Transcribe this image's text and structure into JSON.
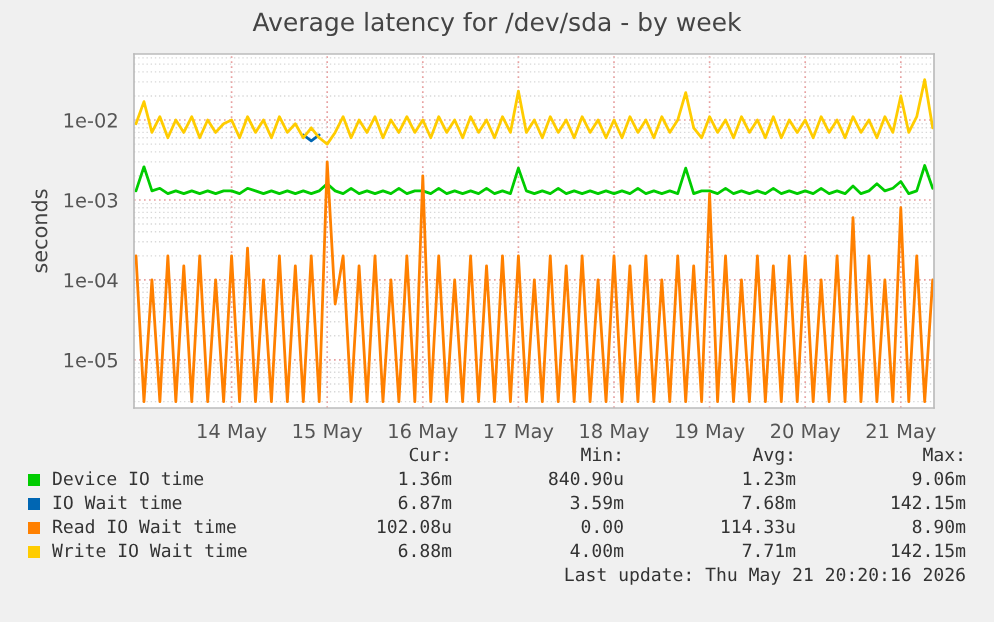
{
  "chart_data": {
    "type": "line",
    "title": "Average latency for /dev/sda - by week",
    "ylabel": "seconds",
    "log": "y",
    "grid": true,
    "legend": "bottom",
    "ylim": [
      2.5e-06,
      0.067
    ],
    "yticks": [
      {
        "value": 1e-05,
        "label": "1e-05"
      },
      {
        "value": 0.0001,
        "label": "1e-04"
      },
      {
        "value": 0.001,
        "label": "1e-03"
      },
      {
        "value": 0.01,
        "label": "1e-02"
      }
    ],
    "xlim": [
      "2026-05-13T11:30",
      "2026-05-21T20:20"
    ],
    "xticks": [
      {
        "value": "2026-05-14T12:00",
        "label": "14 May"
      },
      {
        "value": "2026-05-15T12:00",
        "label": "15 May"
      },
      {
        "value": "2026-05-16T12:00",
        "label": "16 May"
      },
      {
        "value": "2026-05-17T12:00",
        "label": "17 May"
      },
      {
        "value": "2026-05-18T12:00",
        "label": "18 May"
      },
      {
        "value": "2026-05-19T12:00",
        "label": "19 May"
      },
      {
        "value": "2026-05-20T12:00",
        "label": "20 May"
      },
      {
        "value": "2026-05-21T12:00",
        "label": "21 May"
      }
    ],
    "x": [
      "2026-05-13T12:00",
      "2026-05-13T14:00",
      "2026-05-13T16:00",
      "2026-05-13T18:00",
      "2026-05-13T20:00",
      "2026-05-13T22:00",
      "2026-05-14T00:00",
      "2026-05-14T02:00",
      "2026-05-14T04:00",
      "2026-05-14T06:00",
      "2026-05-14T08:00",
      "2026-05-14T10:00",
      "2026-05-14T12:00",
      "2026-05-14T14:00",
      "2026-05-14T16:00",
      "2026-05-14T18:00",
      "2026-05-14T20:00",
      "2026-05-14T22:00",
      "2026-05-15T00:00",
      "2026-05-15T02:00",
      "2026-05-15T04:00",
      "2026-05-15T06:00",
      "2026-05-15T08:00",
      "2026-05-15T10:00",
      "2026-05-15T12:00",
      "2026-05-15T14:00",
      "2026-05-15T16:00",
      "2026-05-15T18:00",
      "2026-05-15T20:00",
      "2026-05-15T22:00",
      "2026-05-16T00:00",
      "2026-05-16T02:00",
      "2026-05-16T04:00",
      "2026-05-16T06:00",
      "2026-05-16T08:00",
      "2026-05-16T10:00",
      "2026-05-16T12:00",
      "2026-05-16T14:00",
      "2026-05-16T16:00",
      "2026-05-16T18:00",
      "2026-05-16T20:00",
      "2026-05-16T22:00",
      "2026-05-17T00:00",
      "2026-05-17T02:00",
      "2026-05-17T04:00",
      "2026-05-17T06:00",
      "2026-05-17T08:00",
      "2026-05-17T10:00",
      "2026-05-17T12:00",
      "2026-05-17T14:00",
      "2026-05-17T16:00",
      "2026-05-17T18:00",
      "2026-05-17T20:00",
      "2026-05-17T22:00",
      "2026-05-18T00:00",
      "2026-05-18T02:00",
      "2026-05-18T04:00",
      "2026-05-18T06:00",
      "2026-05-18T08:00",
      "2026-05-18T10:00",
      "2026-05-18T12:00",
      "2026-05-18T14:00",
      "2026-05-18T16:00",
      "2026-05-18T18:00",
      "2026-05-18T20:00",
      "2026-05-18T22:00",
      "2026-05-19T00:00",
      "2026-05-19T02:00",
      "2026-05-19T04:00",
      "2026-05-19T06:00",
      "2026-05-19T08:00",
      "2026-05-19T10:00",
      "2026-05-19T12:00",
      "2026-05-19T14:00",
      "2026-05-19T16:00",
      "2026-05-19T18:00",
      "2026-05-19T20:00",
      "2026-05-19T22:00",
      "2026-05-20T00:00",
      "2026-05-20T02:00",
      "2026-05-20T04:00",
      "2026-05-20T06:00",
      "2026-05-20T08:00",
      "2026-05-20T10:00",
      "2026-05-20T12:00",
      "2026-05-20T14:00",
      "2026-05-20T16:00",
      "2026-05-20T18:00",
      "2026-05-20T20:00",
      "2026-05-20T22:00",
      "2026-05-21T00:00",
      "2026-05-21T02:00",
      "2026-05-21T04:00",
      "2026-05-21T06:00",
      "2026-05-21T08:00",
      "2026-05-21T10:00",
      "2026-05-21T12:00",
      "2026-05-21T14:00",
      "2026-05-21T16:00",
      "2026-05-21T18:00",
      "2026-05-21T20:00"
    ],
    "series": [
      {
        "name": "Device IO time",
        "color": "#00cc00",
        "values": [
          0.0013,
          0.0026,
          0.0013,
          0.0014,
          0.0012,
          0.0013,
          0.0012,
          0.0013,
          0.0012,
          0.0013,
          0.0012,
          0.0013,
          0.0013,
          0.0012,
          0.0014,
          0.0013,
          0.0012,
          0.0013,
          0.0012,
          0.0013,
          0.0012,
          0.0013,
          0.0012,
          0.0013,
          0.0016,
          0.0013,
          0.0012,
          0.0014,
          0.0012,
          0.0013,
          0.0012,
          0.0013,
          0.0012,
          0.0014,
          0.0012,
          0.0013,
          0.0013,
          0.0012,
          0.0014,
          0.0012,
          0.0013,
          0.0012,
          0.0013,
          0.0012,
          0.0014,
          0.0012,
          0.0013,
          0.0012,
          0.0025,
          0.0013,
          0.0012,
          0.0013,
          0.0012,
          0.0014,
          0.0012,
          0.0013,
          0.0012,
          0.0013,
          0.0012,
          0.0013,
          0.0012,
          0.0013,
          0.0012,
          0.0014,
          0.0012,
          0.0013,
          0.0012,
          0.0013,
          0.0012,
          0.0025,
          0.0012,
          0.0013,
          0.0013,
          0.0012,
          0.0014,
          0.0012,
          0.0013,
          0.0012,
          0.0013,
          0.0012,
          0.0014,
          0.0012,
          0.0013,
          0.0012,
          0.0013,
          0.0012,
          0.0014,
          0.0012,
          0.0013,
          0.0012,
          0.0015,
          0.0012,
          0.0013,
          0.0016,
          0.0013,
          0.0014,
          0.0017,
          0.0012,
          0.0013,
          0.0027,
          0.0014
        ]
      },
      {
        "name": "IO Wait time",
        "color": "#0066b3",
        "x": [
          "2026-05-15T06:00",
          "2026-05-15T08:00",
          "2026-05-15T10:00"
        ],
        "values": [
          0.0065,
          0.0055,
          0.0065
        ]
      },
      {
        "name": "Read IO Wait time",
        "color": "#ff8000",
        "values": [
          0.0002,
          3e-06,
          0.0001,
          3e-06,
          0.0002,
          3e-06,
          0.00015,
          3e-06,
          0.0002,
          3e-06,
          0.0001,
          3e-06,
          0.0002,
          3e-06,
          0.00025,
          3e-06,
          0.0001,
          3e-06,
          0.0002,
          3e-06,
          0.00015,
          3e-06,
          0.0002,
          3e-06,
          0.003,
          5e-05,
          0.0002,
          3e-06,
          0.00015,
          3e-06,
          0.0002,
          3e-06,
          0.0001,
          3e-06,
          0.0002,
          3e-06,
          0.002,
          3e-06,
          0.0002,
          3e-06,
          0.0001,
          3e-06,
          0.0002,
          3e-06,
          0.00015,
          3e-06,
          0.0002,
          3e-06,
          0.0002,
          3e-06,
          0.0001,
          3e-06,
          0.0002,
          3e-06,
          0.00015,
          3e-06,
          0.0002,
          3e-06,
          0.0001,
          3e-06,
          0.0002,
          3e-06,
          0.00015,
          3e-06,
          0.0002,
          3e-06,
          0.0001,
          3e-06,
          0.0002,
          3e-06,
          0.00015,
          3e-06,
          0.0012,
          3e-06,
          0.0002,
          3e-06,
          0.0001,
          3e-06,
          0.0002,
          3e-06,
          0.00015,
          3e-06,
          0.0002,
          3e-06,
          0.0002,
          3e-06,
          0.0001,
          3e-06,
          0.0002,
          3e-06,
          0.0006,
          3e-06,
          0.0002,
          3e-06,
          0.0001,
          3e-06,
          0.0008,
          3e-06,
          0.0002,
          3e-06,
          0.0001
        ]
      },
      {
        "name": "Write IO Wait time",
        "color": "#ffcc00",
        "values": [
          0.009,
          0.017,
          0.007,
          0.011,
          0.006,
          0.01,
          0.007,
          0.011,
          0.006,
          0.01,
          0.007,
          0.009,
          0.01,
          0.006,
          0.011,
          0.007,
          0.01,
          0.006,
          0.011,
          0.007,
          0.009,
          0.006,
          0.008,
          0.006,
          0.005,
          0.007,
          0.011,
          0.006,
          0.01,
          0.007,
          0.011,
          0.006,
          0.01,
          0.007,
          0.011,
          0.007,
          0.01,
          0.006,
          0.011,
          0.007,
          0.01,
          0.006,
          0.011,
          0.007,
          0.01,
          0.006,
          0.011,
          0.007,
          0.023,
          0.007,
          0.01,
          0.006,
          0.011,
          0.007,
          0.01,
          0.006,
          0.011,
          0.007,
          0.01,
          0.006,
          0.01,
          0.006,
          0.011,
          0.007,
          0.01,
          0.006,
          0.011,
          0.007,
          0.01,
          0.022,
          0.008,
          0.006,
          0.011,
          0.007,
          0.01,
          0.006,
          0.011,
          0.007,
          0.01,
          0.006,
          0.011,
          0.006,
          0.01,
          0.007,
          0.01,
          0.006,
          0.011,
          0.007,
          0.01,
          0.006,
          0.011,
          0.007,
          0.01,
          0.006,
          0.011,
          0.007,
          0.02,
          0.007,
          0.011,
          0.032,
          0.008
        ]
      }
    ],
    "annotations": [
      "Cur:",
      "Min:",
      "Avg:",
      "Max:",
      "1.36m",
      "840.90u",
      "1.23m",
      "9.06m",
      "6.87m",
      "3.59m",
      "7.68m",
      "142.15m",
      "102.08u",
      "0.00",
      "114.33u",
      "8.90m",
      "6.88m",
      "4.00m",
      "7.71m",
      "142.15m",
      "Last update: Thu May 21 20:20:16 2026"
    ]
  }
}
